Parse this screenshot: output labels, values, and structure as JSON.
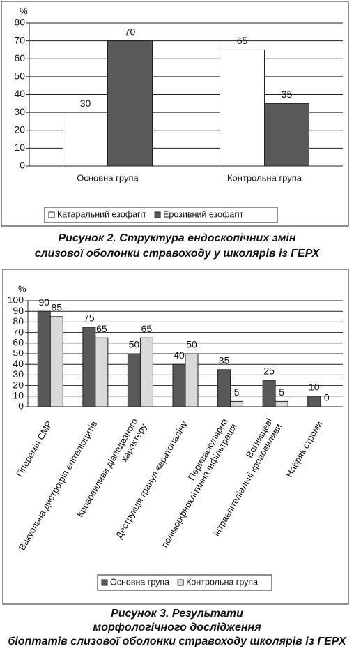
{
  "chart_data": [
    {
      "type": "bar",
      "y_label": "%",
      "categories": [
        "Основна група",
        "Контрольна група"
      ],
      "series": [
        {
          "name": "Катаральний езофагіт",
          "color": "#ffffff",
          "values": [
            30,
            65
          ]
        },
        {
          "name": "Ерозивний езофагіт",
          "color": "#595959",
          "values": [
            70,
            35
          ]
        }
      ],
      "ylim": [
        0,
        80
      ],
      "yticks": [
        0,
        10,
        20,
        30,
        40,
        50,
        60,
        70,
        80
      ],
      "grid": true,
      "legend": "bottom",
      "caption": "Рисунок 2. Структура ендоскопічних змін слизової оболонки стравоходу у школярів із ГЕРХ"
    },
    {
      "type": "bar",
      "y_label": "%",
      "categories": [
        "Гіперемія СМР",
        "Вакуольна дистрофія епітеліоцитів",
        "Крововиливи діапедезного характеру",
        "Деструкція гранул кератогіаліну",
        "Периваскулярна поліморфноклітинна інфільтрація",
        "Вогнищеві інтраепітеліальні крововиливи",
        "Набряк строми"
      ],
      "series": [
        {
          "name": "Основна група",
          "color": "#595959",
          "values": [
            90,
            75,
            50,
            40,
            35,
            25,
            10
          ]
        },
        {
          "name": "Контрольна група",
          "color": "#d9d9d9",
          "values": [
            85,
            65,
            65,
            50,
            5,
            5,
            0
          ]
        }
      ],
      "ylim": [
        0,
        100
      ],
      "yticks": [
        0,
        10,
        20,
        30,
        40,
        50,
        60,
        70,
        80,
        90,
        100
      ],
      "grid": true,
      "legend": "bottom",
      "caption": "Рисунок 3. Результати морфологічного дослідження біоптатів слизової оболонки стравоходу школярів із ГЕРХ"
    }
  ]
}
